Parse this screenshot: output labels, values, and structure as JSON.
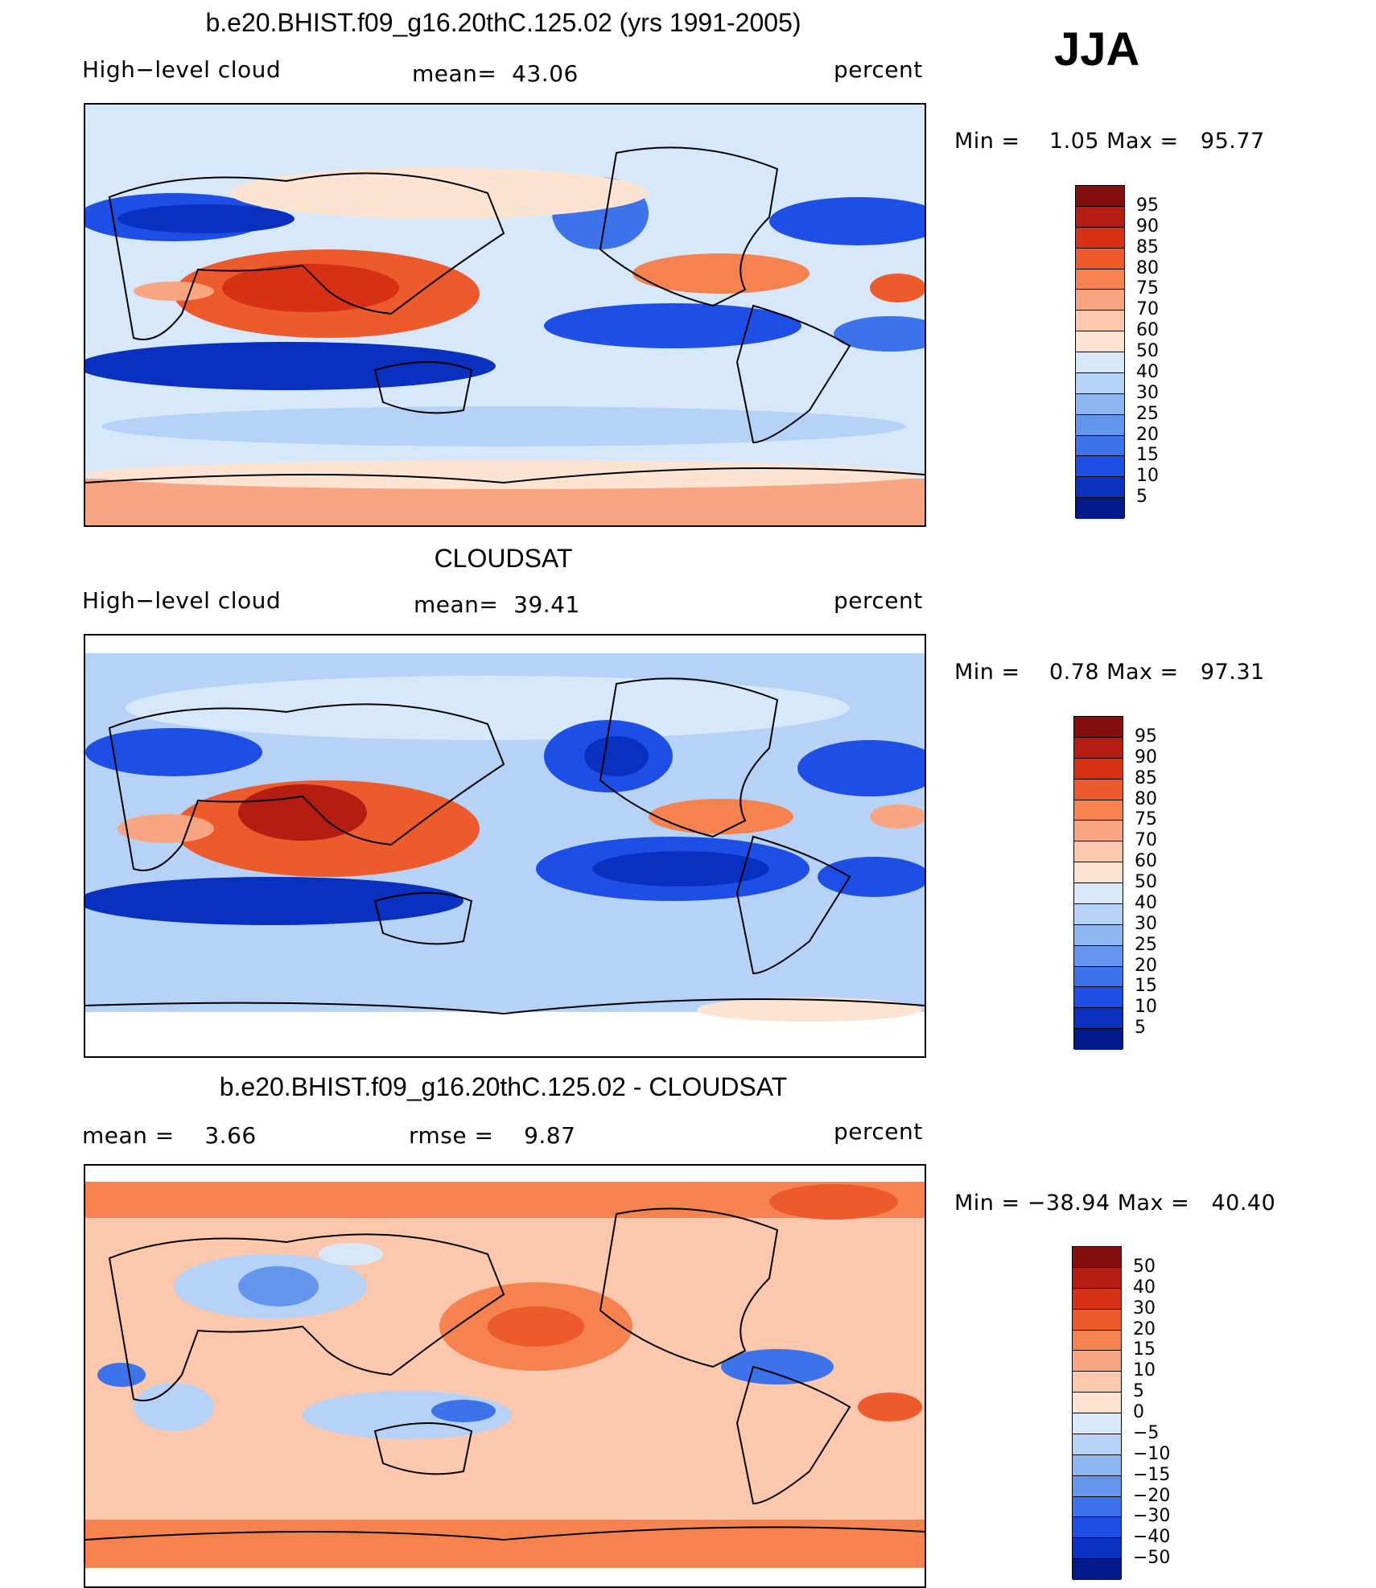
{
  "season": "JJA",
  "chart_data": [
    {
      "type": "heatmap",
      "title": "b.e20.BHIST.f09_g16.20thC.125.02 (yrs 1991-2005)",
      "variable": "High−level cloud",
      "mean_label": "mean=  43.06",
      "units": "percent",
      "minmax_label": "Min =    1.05 Max =   95.77",
      "min": 1.05,
      "max": 95.77,
      "mean": 43.06,
      "colorbar_levels": [
        "95",
        "90",
        "85",
        "80",
        "75",
        "70",
        "60",
        "50",
        "40",
        "30",
        "25",
        "20",
        "15",
        "10",
        "5"
      ],
      "colorbar_colors": [
        "#850e0e",
        "#b31d12",
        "#d63015",
        "#ed5a2c",
        "#f5824f",
        "#f8a581",
        "#fbc8ad",
        "#fde3d2",
        "#d7e8fa",
        "#b6d2f6",
        "#8db6f2",
        "#6496ee",
        "#3c73ea",
        "#1d4ee6",
        "#0a30c0",
        "#051a8a"
      ]
    },
    {
      "type": "heatmap",
      "title": "CLOUDSAT",
      "variable": "High−level cloud",
      "mean_label": "mean=  39.41",
      "units": "percent",
      "minmax_label": "Min =    0.78 Max =   97.31",
      "min": 0.78,
      "max": 97.31,
      "mean": 39.41,
      "colorbar_levels": [
        "95",
        "90",
        "85",
        "80",
        "75",
        "70",
        "60",
        "50",
        "40",
        "30",
        "25",
        "20",
        "15",
        "10",
        "5"
      ],
      "colorbar_colors": [
        "#850e0e",
        "#b31d12",
        "#d63015",
        "#ed5a2c",
        "#f5824f",
        "#f8a581",
        "#fbc8ad",
        "#fde3d2",
        "#d7e8fa",
        "#b6d2f6",
        "#8db6f2",
        "#6496ee",
        "#3c73ea",
        "#1d4ee6",
        "#0a30c0",
        "#051a8a"
      ]
    },
    {
      "type": "heatmap",
      "title": "b.e20.BHIST.f09_g16.20thC.125.02 - CLOUDSAT",
      "mean_label": "mean =    3.66",
      "rmse_label": "rmse =    9.87",
      "units": "percent",
      "minmax_label": "Min = −38.94 Max =   40.40",
      "min": -38.94,
      "max": 40.4,
      "mean": 3.66,
      "rmse": 9.87,
      "colorbar_levels": [
        "50",
        "40",
        "30",
        "20",
        "15",
        "10",
        "5",
        "0",
        "−5",
        "−10",
        "−15",
        "−20",
        "−30",
        "−40",
        "−50"
      ],
      "colorbar_colors": [
        "#850e0e",
        "#b31d12",
        "#d63015",
        "#ed5a2c",
        "#f5824f",
        "#f8a581",
        "#fbc8ad",
        "#fde3d2",
        "#d7e8fa",
        "#b6d2f6",
        "#8db6f2",
        "#6496ee",
        "#3c73ea",
        "#1d4ee6",
        "#0a30c0",
        "#051a8a"
      ]
    }
  ]
}
